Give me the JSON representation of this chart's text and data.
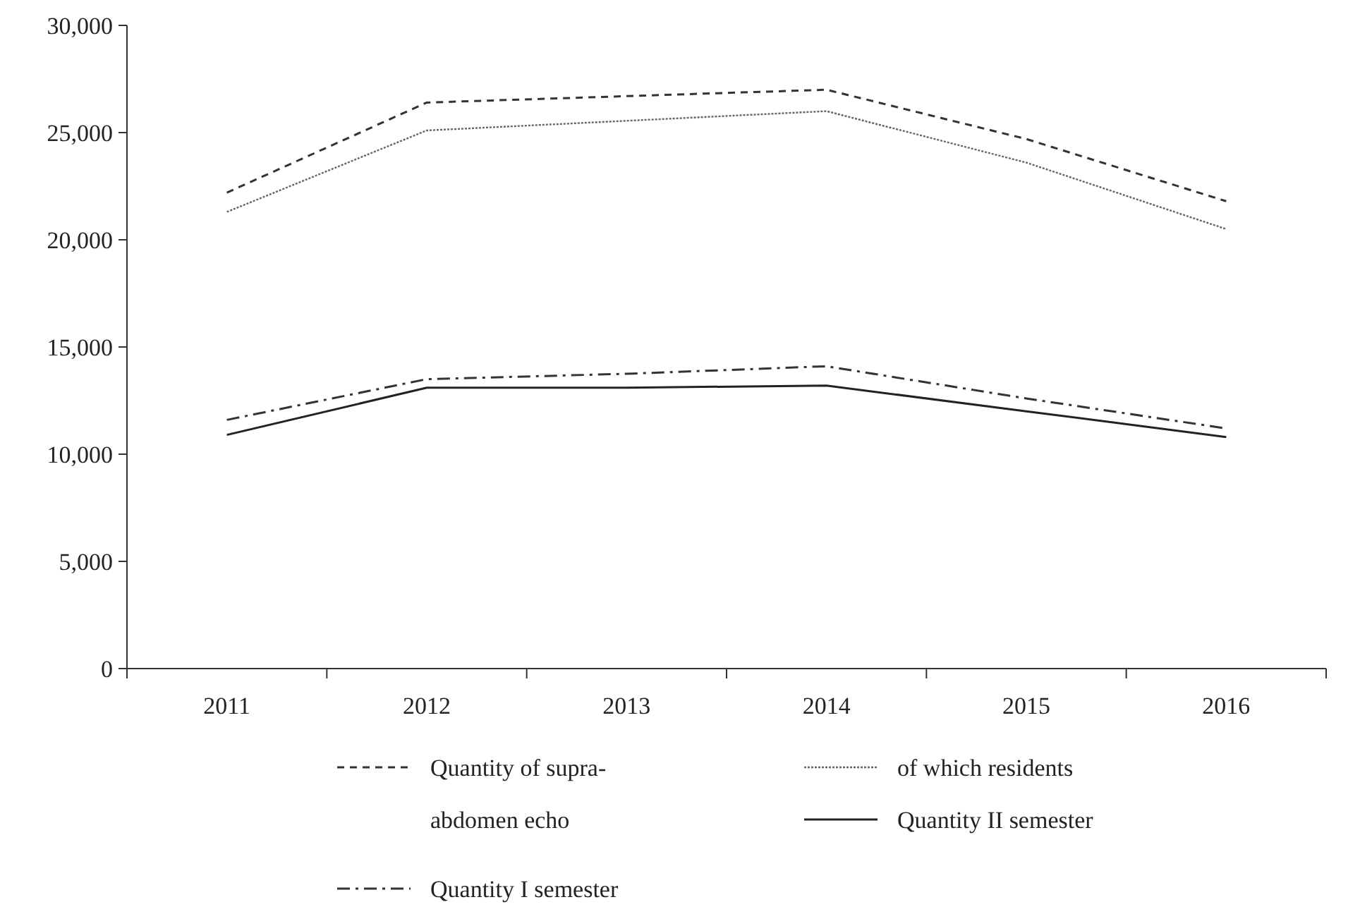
{
  "chart_data": {
    "type": "line",
    "categories": [
      "2011",
      "2012",
      "2013",
      "2014",
      "2015",
      "2016"
    ],
    "series": [
      {
        "name": "Quantity of supra-abdomen echo",
        "color": "#333333",
        "line_style": "dashed",
        "values": [
          22200,
          26400,
          26700,
          27000,
          24700,
          21800
        ]
      },
      {
        "name": "of which residents",
        "color": "#666666",
        "line_style": "dotted",
        "values": [
          21300,
          25100,
          25550,
          26000,
          23600,
          20500
        ]
      },
      {
        "name": "Quantity II semester",
        "color": "#222222",
        "line_style": "solid",
        "values": [
          10900,
          13100,
          13100,
          13200,
          12000,
          10800
        ]
      },
      {
        "name": "Quantity I semester",
        "color": "#333333",
        "line_style": "dashdot",
        "values": [
          11600,
          13500,
          13750,
          14100,
          12600,
          11200
        ]
      }
    ],
    "ylim": [
      0,
      30000
    ],
    "yticks": [
      {
        "value": 0,
        "label": "0"
      },
      {
        "value": 5000,
        "label": "5,000"
      },
      {
        "value": 10000,
        "label": "10,000"
      },
      {
        "value": 15000,
        "label": "15,000"
      },
      {
        "value": 20000,
        "label": "20,000"
      },
      {
        "value": 25000,
        "label": "25,000"
      },
      {
        "value": 30000,
        "label": "30,000"
      }
    ],
    "grid": false,
    "legend": "bottom",
    "marker": "none"
  }
}
